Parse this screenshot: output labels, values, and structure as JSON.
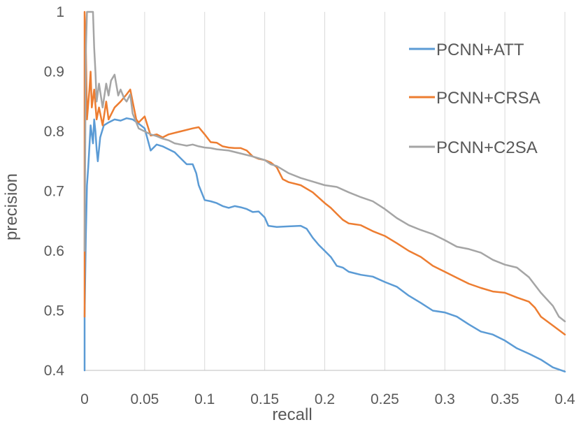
{
  "chart_data": {
    "type": "line",
    "title": "",
    "xlabel": "recall",
    "ylabel": "precision",
    "xlim": [
      0,
      0.4
    ],
    "ylim": [
      0.4,
      1
    ],
    "x_ticks": [
      "0",
      "0.05",
      "0.1",
      "0.15",
      "0.2",
      "0.25",
      "0.3",
      "0.35",
      "0.4"
    ],
    "y_ticks": [
      "0.4",
      "0.5",
      "0.6",
      "0.7",
      "0.8",
      "0.9",
      "1"
    ],
    "grid": "vertical",
    "legend_position": "top-right",
    "series": [
      {
        "name": "PCNN+ATT",
        "color": "#5b9bd5",
        "points": [
          [
            0,
            0.4
          ],
          [
            0,
            0.49
          ],
          [
            0.001,
            0.62
          ],
          [
            0.002,
            0.71
          ],
          [
            0.003,
            0.74
          ],
          [
            0.005,
            0.81
          ],
          [
            0.007,
            0.78
          ],
          [
            0.008,
            0.82
          ],
          [
            0.009,
            0.8
          ],
          [
            0.01,
            0.77
          ],
          [
            0.011,
            0.75
          ],
          [
            0.013,
            0.79
          ],
          [
            0.016,
            0.81
          ],
          [
            0.02,
            0.815
          ],
          [
            0.025,
            0.82
          ],
          [
            0.03,
            0.818
          ],
          [
            0.035,
            0.822
          ],
          [
            0.04,
            0.82
          ],
          [
            0.045,
            0.813
          ],
          [
            0.05,
            0.805
          ],
          [
            0.055,
            0.768
          ],
          [
            0.06,
            0.778
          ],
          [
            0.065,
            0.775
          ],
          [
            0.07,
            0.77
          ],
          [
            0.075,
            0.765
          ],
          [
            0.08,
            0.755
          ],
          [
            0.085,
            0.745
          ],
          [
            0.09,
            0.745
          ],
          [
            0.093,
            0.73
          ],
          [
            0.095,
            0.71
          ],
          [
            0.1,
            0.685
          ],
          [
            0.105,
            0.683
          ],
          [
            0.11,
            0.68
          ],
          [
            0.115,
            0.675
          ],
          [
            0.12,
            0.672
          ],
          [
            0.125,
            0.675
          ],
          [
            0.13,
            0.673
          ],
          [
            0.135,
            0.67
          ],
          [
            0.14,
            0.665
          ],
          [
            0.145,
            0.666
          ],
          [
            0.15,
            0.656
          ],
          [
            0.153,
            0.642
          ],
          [
            0.16,
            0.64
          ],
          [
            0.17,
            0.641
          ],
          [
            0.18,
            0.642
          ],
          [
            0.185,
            0.637
          ],
          [
            0.19,
            0.622
          ],
          [
            0.195,
            0.61
          ],
          [
            0.2,
            0.6
          ],
          [
            0.205,
            0.59
          ],
          [
            0.21,
            0.575
          ],
          [
            0.215,
            0.572
          ],
          [
            0.22,
            0.565
          ],
          [
            0.23,
            0.56
          ],
          [
            0.24,
            0.557
          ],
          [
            0.25,
            0.548
          ],
          [
            0.26,
            0.54
          ],
          [
            0.27,
            0.525
          ],
          [
            0.28,
            0.513
          ],
          [
            0.29,
            0.5
          ],
          [
            0.3,
            0.497
          ],
          [
            0.31,
            0.49
          ],
          [
            0.32,
            0.477
          ],
          [
            0.33,
            0.465
          ],
          [
            0.34,
            0.46
          ],
          [
            0.35,
            0.45
          ],
          [
            0.36,
            0.437
          ],
          [
            0.37,
            0.428
          ],
          [
            0.38,
            0.418
          ],
          [
            0.39,
            0.405
          ],
          [
            0.4,
            0.398
          ]
        ]
      },
      {
        "name": "PCNN+CRSA",
        "color": "#ed7d31",
        "points": [
          [
            0,
            0.49
          ],
          [
            0,
            1.0
          ],
          [
            0.001,
            0.95
          ],
          [
            0.002,
            0.82
          ],
          [
            0.004,
            0.87
          ],
          [
            0.005,
            0.9
          ],
          [
            0.006,
            0.84
          ],
          [
            0.008,
            0.87
          ],
          [
            0.01,
            0.82
          ],
          [
            0.012,
            0.84
          ],
          [
            0.015,
            0.81
          ],
          [
            0.018,
            0.85
          ],
          [
            0.02,
            0.82
          ],
          [
            0.025,
            0.84
          ],
          [
            0.03,
            0.85
          ],
          [
            0.035,
            0.862
          ],
          [
            0.038,
            0.87
          ],
          [
            0.04,
            0.85
          ],
          [
            0.043,
            0.82
          ],
          [
            0.045,
            0.815
          ],
          [
            0.05,
            0.825
          ],
          [
            0.055,
            0.793
          ],
          [
            0.06,
            0.795
          ],
          [
            0.065,
            0.79
          ],
          [
            0.07,
            0.795
          ],
          [
            0.08,
            0.8
          ],
          [
            0.09,
            0.805
          ],
          [
            0.095,
            0.807
          ],
          [
            0.1,
            0.795
          ],
          [
            0.105,
            0.782
          ],
          [
            0.11,
            0.781
          ],
          [
            0.115,
            0.775
          ],
          [
            0.12,
            0.773
          ],
          [
            0.125,
            0.772
          ],
          [
            0.13,
            0.772
          ],
          [
            0.135,
            0.768
          ],
          [
            0.14,
            0.758
          ],
          [
            0.145,
            0.754
          ],
          [
            0.15,
            0.752
          ],
          [
            0.155,
            0.748
          ],
          [
            0.16,
            0.74
          ],
          [
            0.165,
            0.72
          ],
          [
            0.17,
            0.715
          ],
          [
            0.18,
            0.71
          ],
          [
            0.19,
            0.698
          ],
          [
            0.2,
            0.68
          ],
          [
            0.205,
            0.672
          ],
          [
            0.21,
            0.662
          ],
          [
            0.215,
            0.652
          ],
          [
            0.22,
            0.646
          ],
          [
            0.23,
            0.643
          ],
          [
            0.24,
            0.633
          ],
          [
            0.25,
            0.625
          ],
          [
            0.26,
            0.613
          ],
          [
            0.27,
            0.6
          ],
          [
            0.28,
            0.59
          ],
          [
            0.29,
            0.575
          ],
          [
            0.3,
            0.565
          ],
          [
            0.31,
            0.555
          ],
          [
            0.32,
            0.545
          ],
          [
            0.33,
            0.538
          ],
          [
            0.34,
            0.532
          ],
          [
            0.35,
            0.53
          ],
          [
            0.36,
            0.522
          ],
          [
            0.37,
            0.515
          ],
          [
            0.375,
            0.505
          ],
          [
            0.38,
            0.49
          ],
          [
            0.39,
            0.475
          ],
          [
            0.4,
            0.46
          ]
        ]
      },
      {
        "name": "PCNN+C2SA",
        "color": "#a5a5a5",
        "points": [
          [
            0,
            0.6
          ],
          [
            0.001,
            0.93
          ],
          [
            0.002,
            1.0
          ],
          [
            0.003,
            1.0
          ],
          [
            0.007,
            1.0
          ],
          [
            0.008,
            0.94
          ],
          [
            0.009,
            0.9
          ],
          [
            0.01,
            0.85
          ],
          [
            0.012,
            0.88
          ],
          [
            0.015,
            0.84
          ],
          [
            0.018,
            0.88
          ],
          [
            0.02,
            0.86
          ],
          [
            0.022,
            0.885
          ],
          [
            0.025,
            0.895
          ],
          [
            0.028,
            0.86
          ],
          [
            0.03,
            0.87
          ],
          [
            0.033,
            0.855
          ],
          [
            0.035,
            0.85
          ],
          [
            0.038,
            0.862
          ],
          [
            0.04,
            0.83
          ],
          [
            0.045,
            0.805
          ],
          [
            0.05,
            0.8
          ],
          [
            0.055,
            0.795
          ],
          [
            0.06,
            0.792
          ],
          [
            0.065,
            0.788
          ],
          [
            0.07,
            0.785
          ],
          [
            0.075,
            0.78
          ],
          [
            0.08,
            0.778
          ],
          [
            0.085,
            0.776
          ],
          [
            0.09,
            0.778
          ],
          [
            0.095,
            0.775
          ],
          [
            0.1,
            0.773
          ],
          [
            0.105,
            0.772
          ],
          [
            0.11,
            0.77
          ],
          [
            0.12,
            0.768
          ],
          [
            0.13,
            0.763
          ],
          [
            0.14,
            0.758
          ],
          [
            0.15,
            0.752
          ],
          [
            0.155,
            0.745
          ],
          [
            0.16,
            0.742
          ],
          [
            0.17,
            0.73
          ],
          [
            0.18,
            0.722
          ],
          [
            0.19,
            0.716
          ],
          [
            0.2,
            0.71
          ],
          [
            0.21,
            0.707
          ],
          [
            0.22,
            0.698
          ],
          [
            0.23,
            0.69
          ],
          [
            0.24,
            0.683
          ],
          [
            0.25,
            0.67
          ],
          [
            0.26,
            0.655
          ],
          [
            0.27,
            0.643
          ],
          [
            0.28,
            0.635
          ],
          [
            0.29,
            0.628
          ],
          [
            0.3,
            0.618
          ],
          [
            0.31,
            0.607
          ],
          [
            0.32,
            0.603
          ],
          [
            0.33,
            0.597
          ],
          [
            0.34,
            0.585
          ],
          [
            0.35,
            0.577
          ],
          [
            0.36,
            0.572
          ],
          [
            0.37,
            0.556
          ],
          [
            0.38,
            0.53
          ],
          [
            0.39,
            0.508
          ],
          [
            0.395,
            0.49
          ],
          [
            0.4,
            0.482
          ]
        ]
      }
    ]
  }
}
